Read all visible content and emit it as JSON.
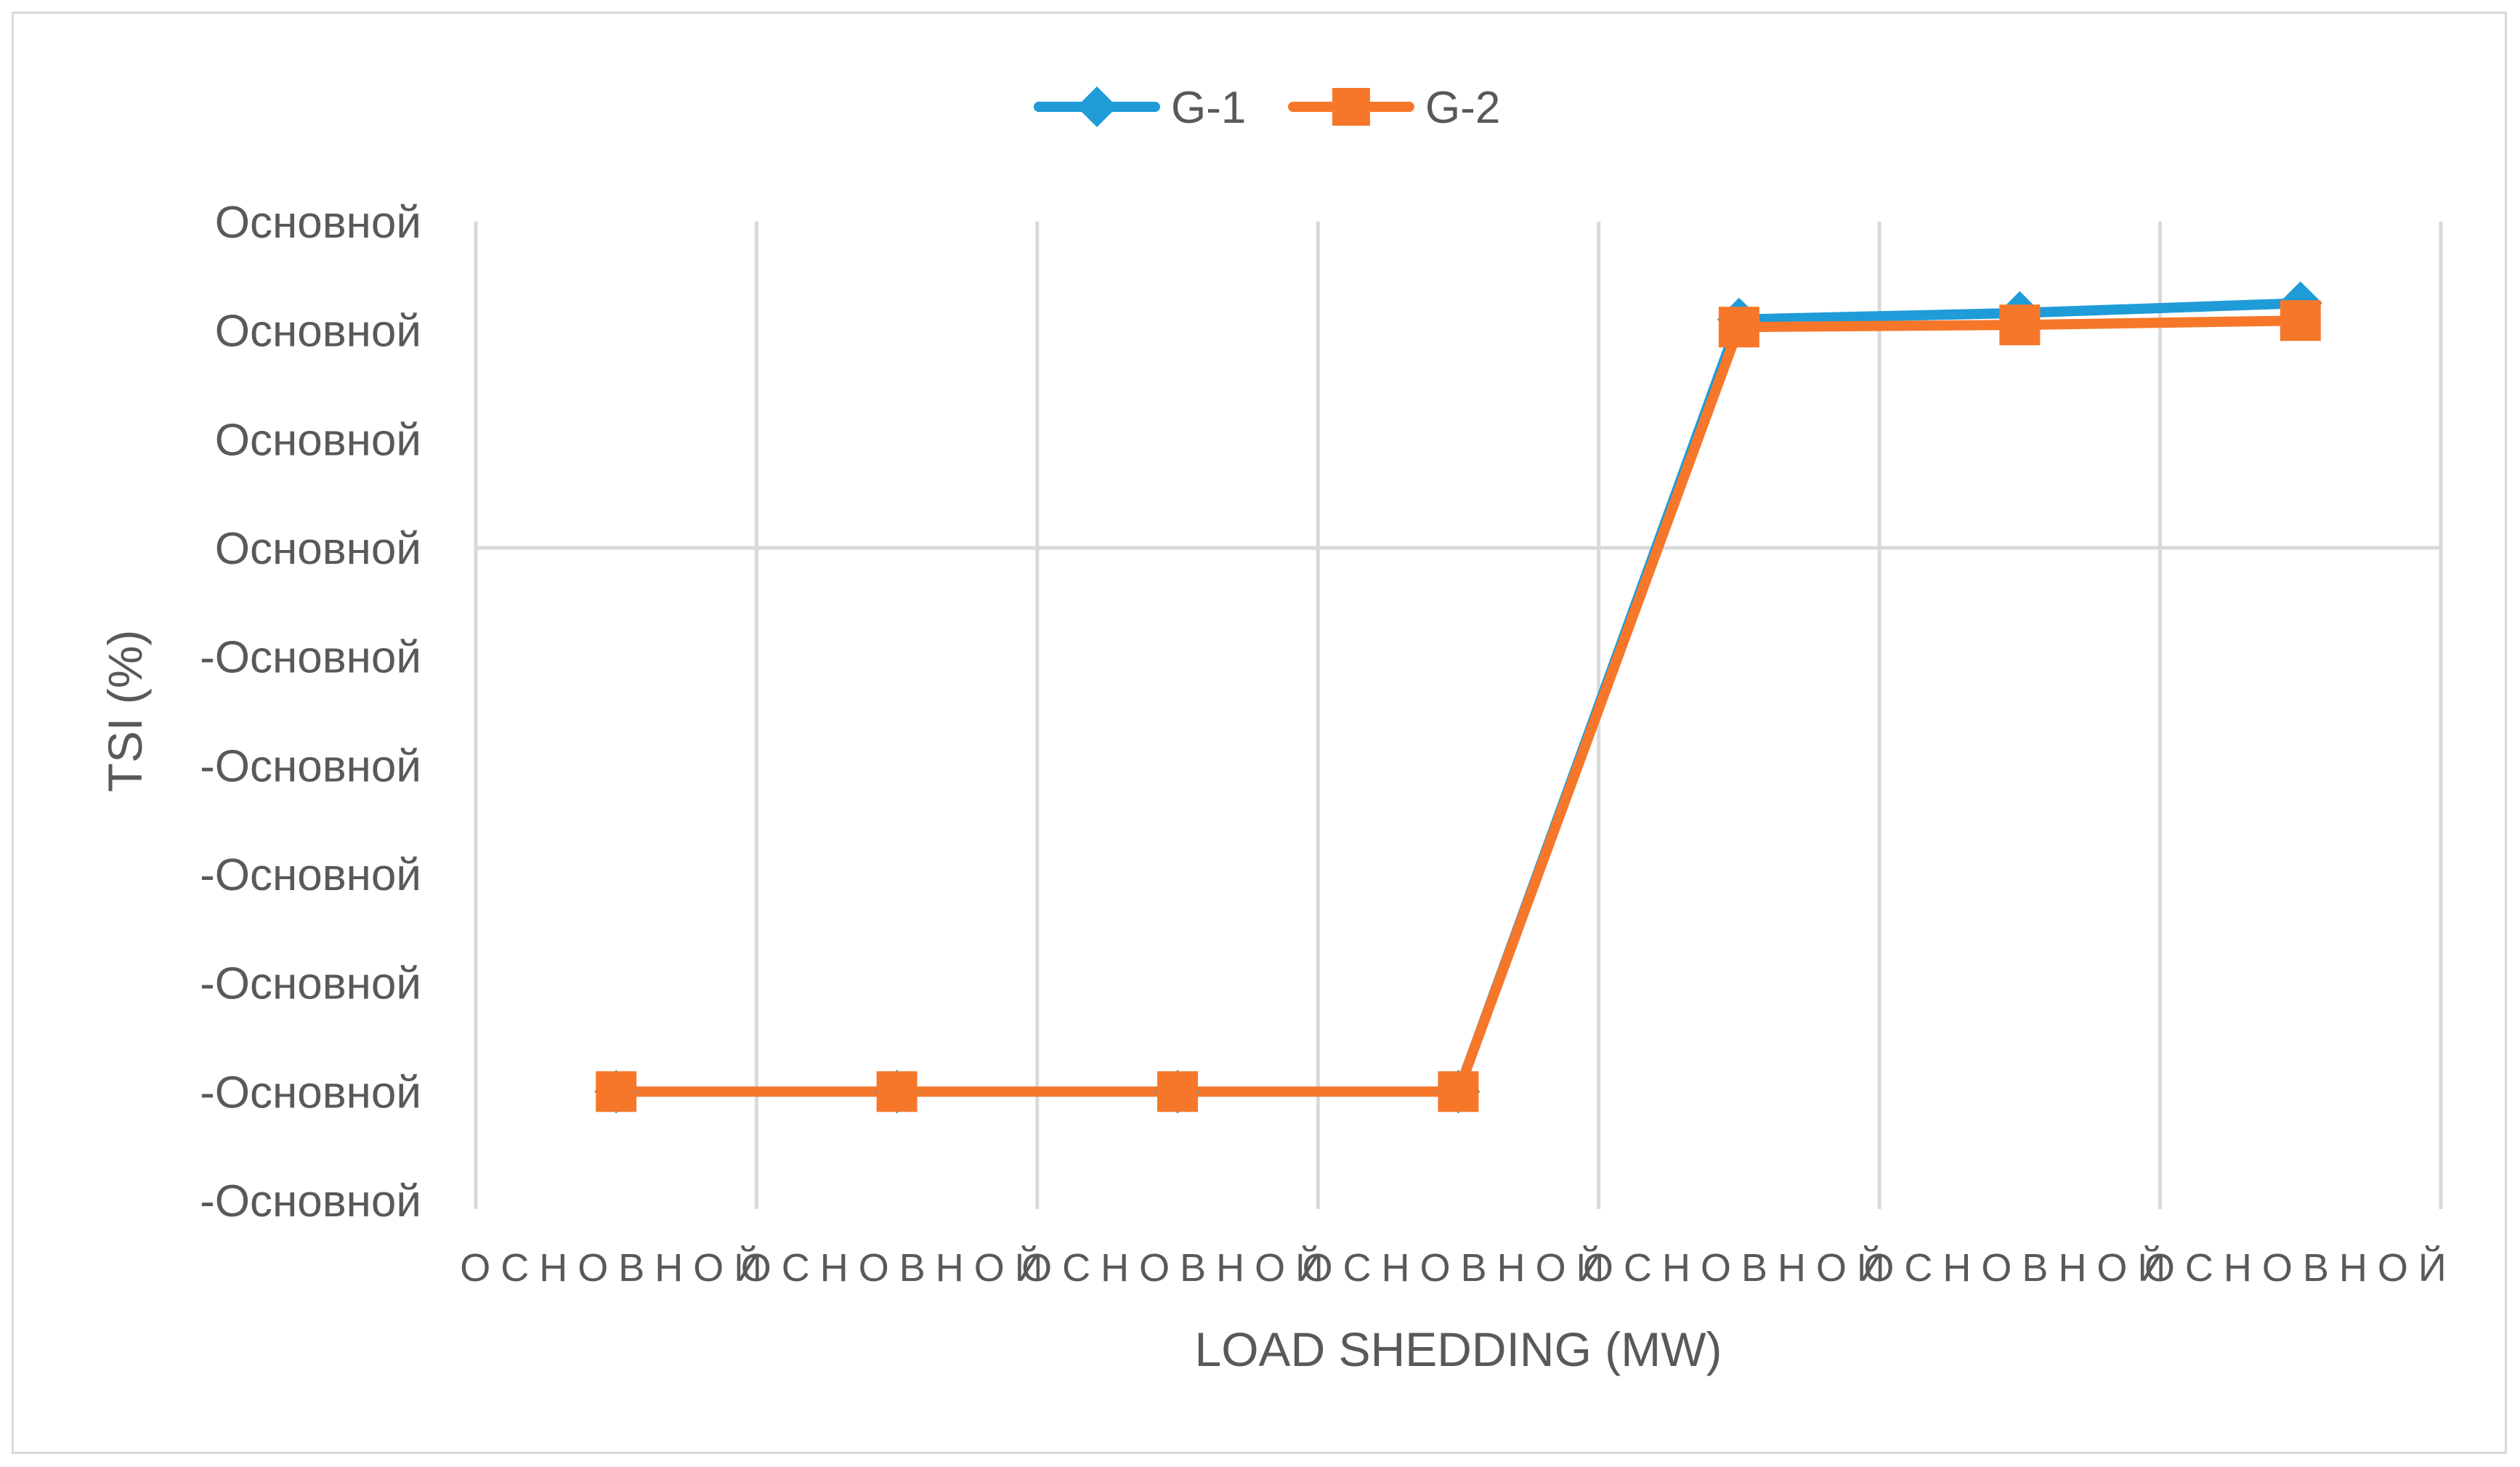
{
  "chart_data": {
    "type": "line",
    "title": "",
    "xlabel": "LOAD SHEDDING (MW)",
    "ylabel": "TSI (%)",
    "categories": [
      "ОСНОВНОЙ",
      "ОСНОВНОЙ",
      "ОСНОВНОЙ",
      "ОСНОВНОЙ",
      "ОСНОВНОЙ",
      "ОСНОВНОЙ",
      "ОСНОВНОЙ"
    ],
    "y_tick_labels": [
      "Основной",
      "Основной",
      "Основной",
      "Основной",
      "-Основной",
      "-Основной",
      "-Основной",
      "-Основной",
      "-Основной",
      "-Основной"
    ],
    "ylim": [
      -60,
      30
    ],
    "y_tick_values": [
      30,
      20,
      10,
      0,
      -10,
      -20,
      -30,
      -40,
      -50,
      -60
    ],
    "x_positions": [
      0.5,
      1.5,
      2.5,
      3.5,
      4.5,
      5.5,
      6.5
    ],
    "xlim": [
      0,
      7
    ],
    "grid": true,
    "legend_position": "top-center",
    "series": [
      {
        "name": "G-1",
        "color": "#1f9bd7",
        "marker": "diamond",
        "values": [
          -50,
          -50,
          -50,
          -50,
          21,
          21.6,
          22.5
        ]
      },
      {
        "name": "G-2",
        "color": "#f7772a",
        "marker": "square",
        "values": [
          -50,
          -50,
          -50,
          -50,
          20.3,
          20.5,
          20.9
        ]
      }
    ]
  }
}
